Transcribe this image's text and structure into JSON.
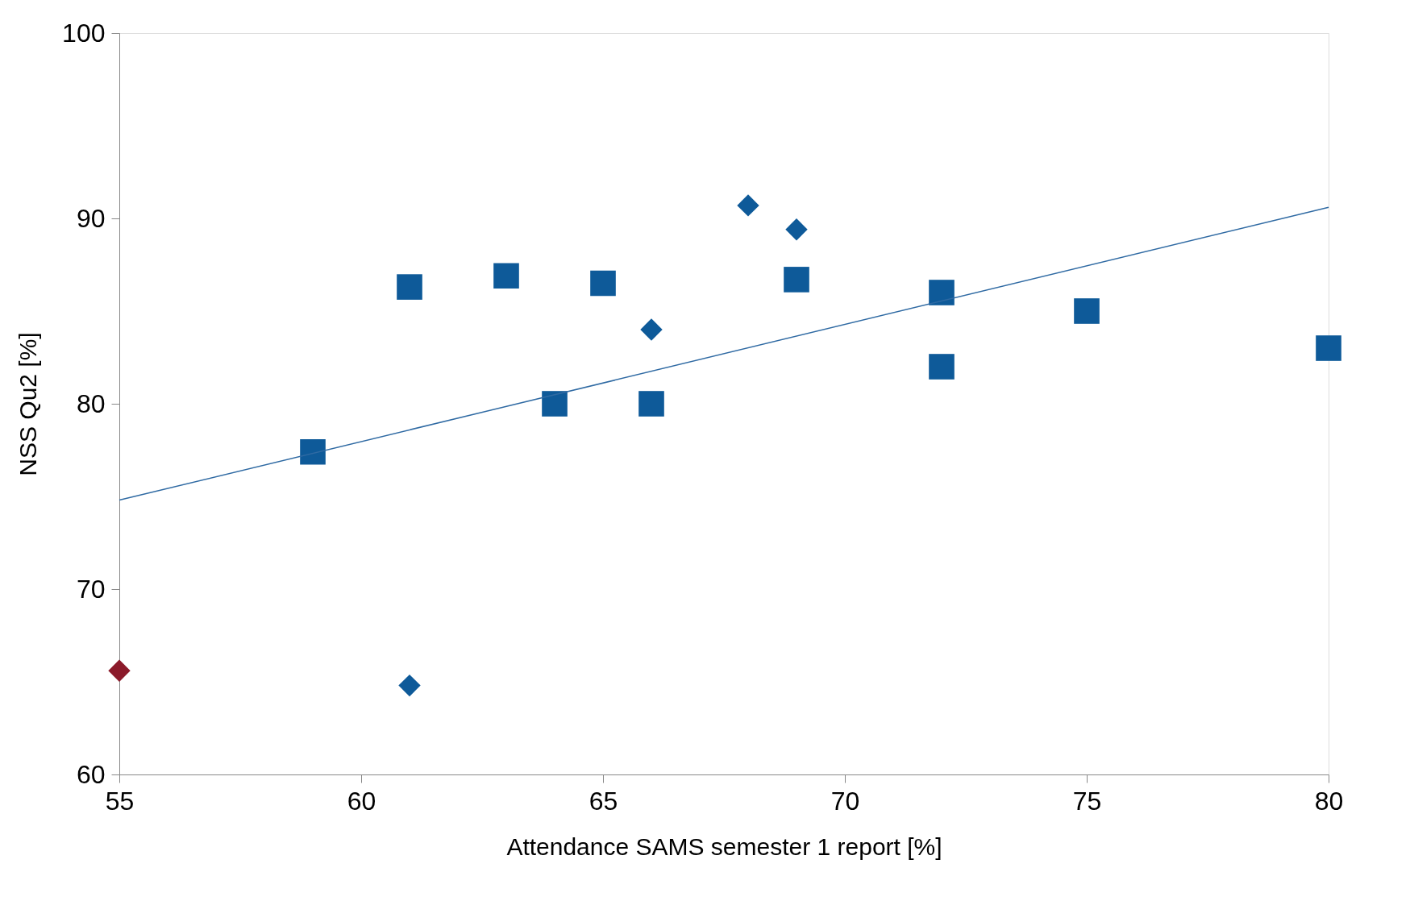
{
  "chart_data": {
    "type": "scatter",
    "xlabel": "Attendance SAMS semester 1 report [%]",
    "ylabel": "NSS Qu2 [%]",
    "xlim": [
      55,
      80
    ],
    "xticks": [
      55,
      60,
      65,
      70,
      75,
      80
    ],
    "ylim": [
      60,
      100
    ],
    "yticks": [
      60,
      70,
      80,
      90,
      100
    ],
    "grid": false,
    "series": [
      {
        "marker": "square",
        "color": "#0e5a99",
        "x": [
          59,
          61,
          63,
          64,
          65,
          66,
          69,
          72,
          72,
          75,
          80
        ],
        "values": [
          77.4,
          86.3,
          86.9,
          80,
          86.5,
          80,
          86.7,
          86,
          82,
          85,
          83
        ]
      },
      {
        "marker": "diamond",
        "color": "#0e5a99",
        "x": [
          61,
          66,
          68,
          69
        ],
        "values": [
          64.8,
          84,
          90.7,
          89.4
        ]
      },
      {
        "marker": "diamond",
        "color": "#8b1a2a",
        "x": [
          55
        ],
        "values": [
          65.6
        ]
      },
      {
        "type": "line",
        "line_style": "solid",
        "marker": "none",
        "color": "#2f6aa3",
        "x": [
          55,
          80
        ],
        "values": [
          74.8,
          90.6
        ]
      }
    ]
  }
}
